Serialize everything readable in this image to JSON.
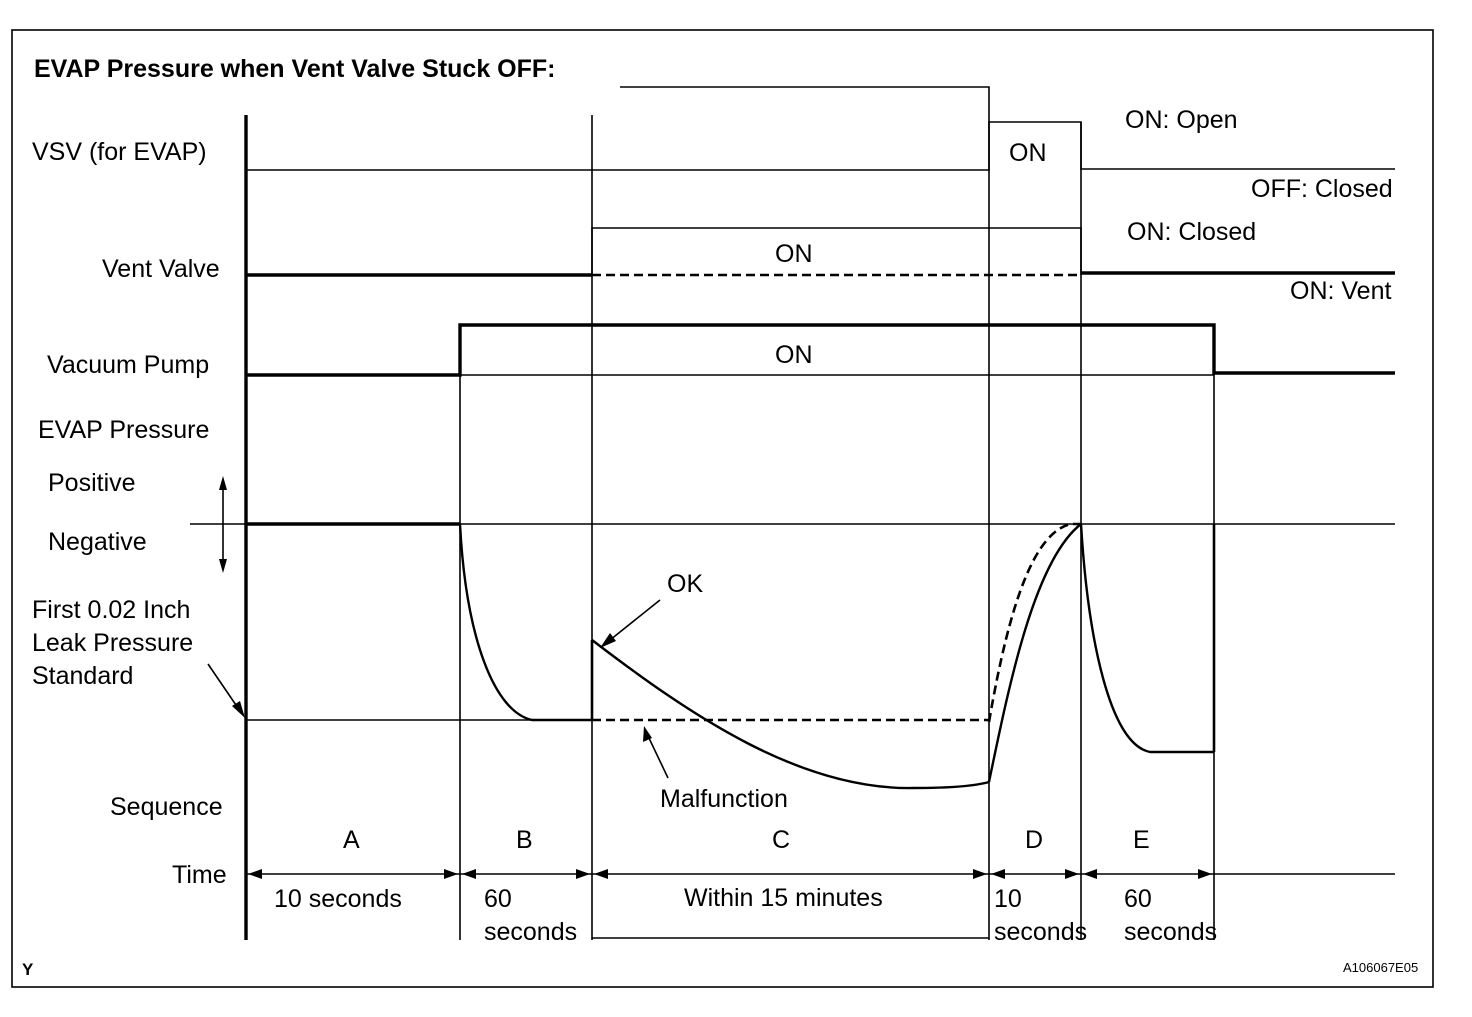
{
  "title": "EVAP Pressure when Vent Valve Stuck OFF:",
  "rows": {
    "vsv": "VSV (for EVAP)",
    "vent_valve": "Vent Valve",
    "vacuum_pump": "Vacuum Pump",
    "evap_pressure": "EVAP Pressure",
    "positive": "Positive",
    "negative": "Negative",
    "leak_standard": [
      "First 0.02 Inch",
      "Leak Pressure",
      "Standard"
    ],
    "sequence": "Sequence",
    "time": "Time"
  },
  "states": {
    "vsv_on": "ON",
    "vsv_on_meaning": "ON: Open",
    "vsv_off_meaning": "OFF: Closed",
    "vent_on": "ON",
    "vent_on_closed": "ON: Closed",
    "vent_on_vent": "ON: Vent",
    "pump_on": "ON"
  },
  "annotations": {
    "ok": "OK",
    "malfunction": "Malfunction"
  },
  "sequence": [
    {
      "label": "A",
      "time": [
        "10 seconds"
      ]
    },
    {
      "label": "B",
      "time": [
        "60",
        "seconds"
      ]
    },
    {
      "label": "C",
      "time": [
        "Within 15 minutes"
      ]
    },
    {
      "label": "D",
      "time": [
        "10",
        "seconds"
      ]
    },
    {
      "label": "E",
      "time": [
        "60",
        "seconds"
      ]
    }
  ],
  "footer": {
    "left_mark": "Y",
    "figure_id": "A106067E05"
  }
}
